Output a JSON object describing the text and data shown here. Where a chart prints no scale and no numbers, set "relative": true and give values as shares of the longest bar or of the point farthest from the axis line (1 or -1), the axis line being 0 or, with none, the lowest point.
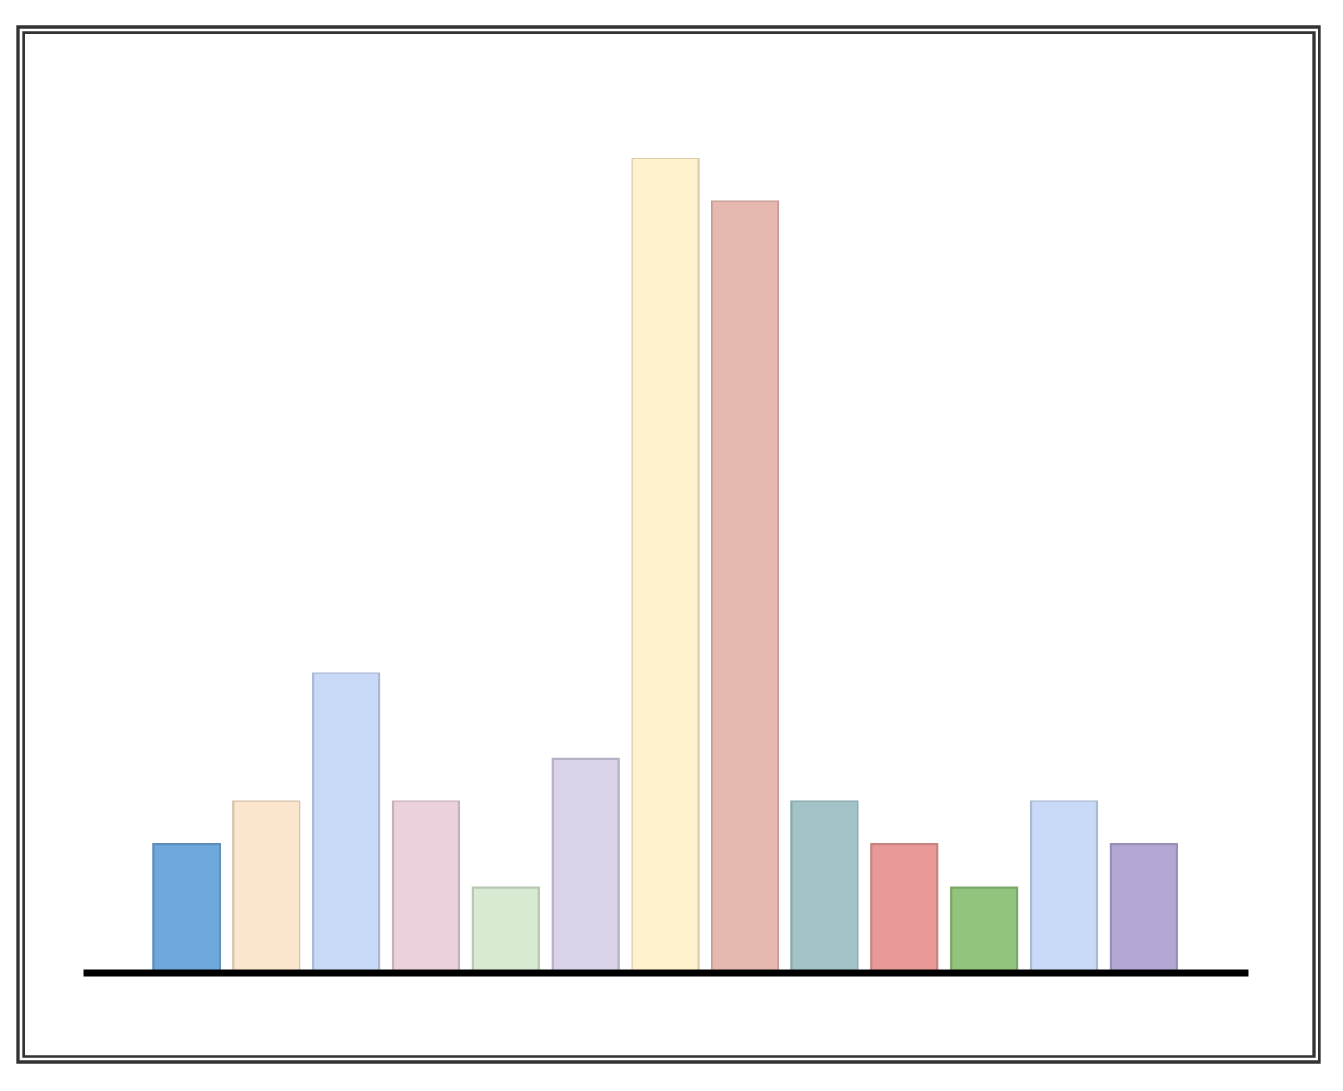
{
  "chart_data": {
    "type": "bar",
    "relative": true,
    "categories": [
      null,
      null,
      null,
      null,
      null,
      null,
      null,
      null,
      null,
      null,
      null,
      null,
      null
    ],
    "values": [
      0.158,
      0.211,
      0.368,
      0.211,
      0.105,
      0.263,
      1,
      0.947,
      0.211,
      0.158,
      0.105,
      0.211,
      0.158
    ],
    "colors": [
      "#6fa8dc",
      "#fce5cd",
      "#c9daf8",
      "#ead1dc",
      "#d9ead3",
      "#d9d2e9",
      "#fff2cc",
      "#e6b8af",
      "#a2c4c9",
      "#ea9999",
      "#93c47d",
      "#c9daf8",
      "#b4a7d6"
    ]
  }
}
